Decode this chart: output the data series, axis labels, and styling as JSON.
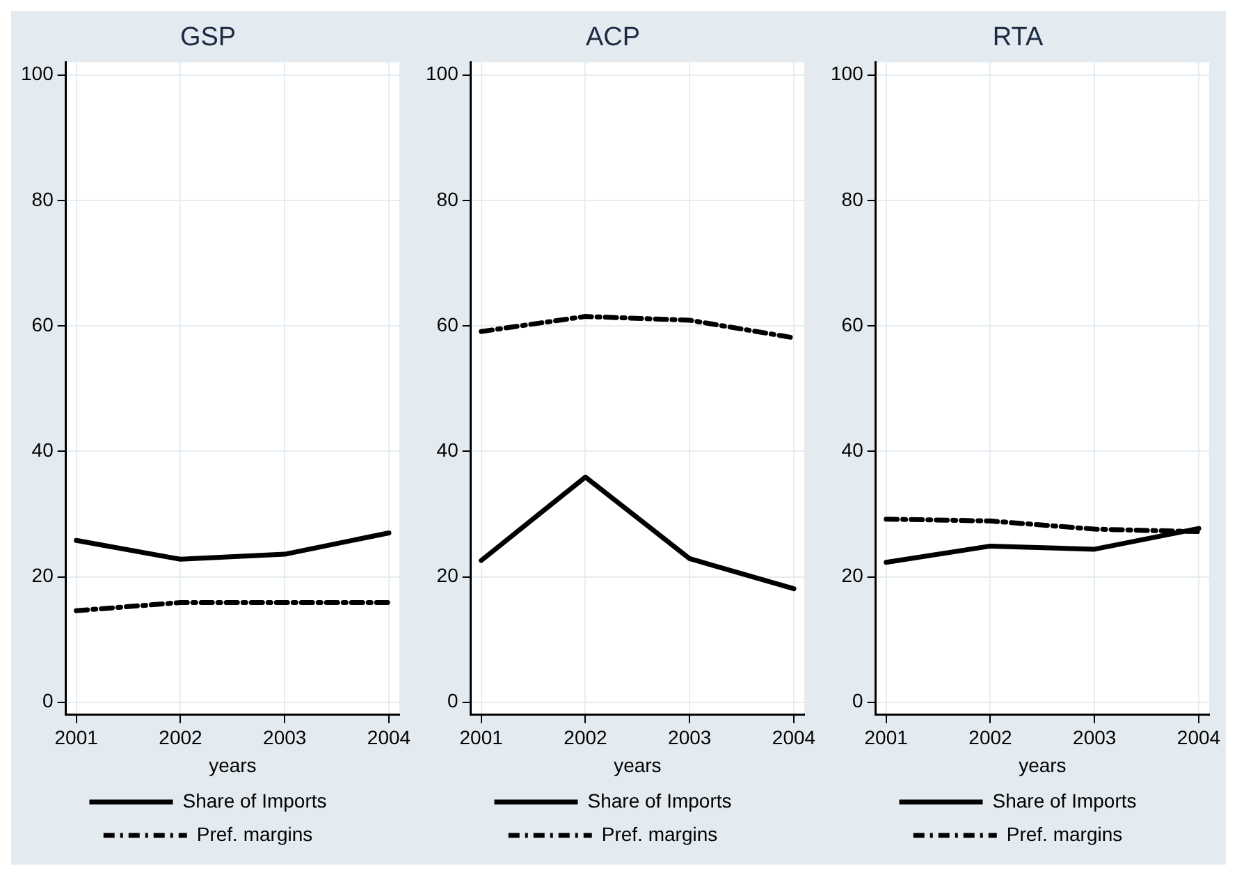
{
  "chart_data": [
    {
      "type": "line",
      "title": "GSP",
      "xlabel": "years",
      "x": [
        2001,
        2002,
        2003,
        2004
      ],
      "xlim": [
        2000.9,
        2004.1
      ],
      "xticks": [
        2001,
        2002,
        2003,
        2004
      ],
      "ylim": [
        -2,
        102
      ],
      "yticks": [
        0,
        20,
        40,
        60,
        80,
        100
      ],
      "grid": true,
      "legend": "bottom",
      "marker": "none",
      "series": [
        {
          "name": "Share of Imports",
          "color": "#000000",
          "line_style": "solid",
          "values": [
            25.8,
            22.8,
            23.6,
            27.0
          ]
        },
        {
          "name": "Pref. margins",
          "color": "#000000",
          "line_style": "dashed",
          "values": [
            14.6,
            15.9,
            15.9,
            15.9
          ]
        }
      ]
    },
    {
      "type": "line",
      "title": "ACP",
      "xlabel": "years",
      "x": [
        2001,
        2002,
        2003,
        2004
      ],
      "xlim": [
        2000.9,
        2004.1
      ],
      "xticks": [
        2001,
        2002,
        2003,
        2004
      ],
      "ylim": [
        -2,
        102
      ],
      "yticks": [
        0,
        20,
        40,
        60,
        80,
        100
      ],
      "grid": true,
      "legend": "bottom",
      "marker": "none",
      "series": [
        {
          "name": "Share of Imports",
          "color": "#000000",
          "line_style": "solid",
          "values": [
            22.6,
            35.9,
            22.9,
            18.1
          ]
        },
        {
          "name": "Pref. margins",
          "color": "#000000",
          "line_style": "dashed",
          "values": [
            59.1,
            61.5,
            60.9,
            58.1
          ]
        }
      ]
    },
    {
      "type": "line",
      "title": "RTA",
      "xlabel": "years",
      "x": [
        2001,
        2002,
        2003,
        2004
      ],
      "xlim": [
        2000.9,
        2004.1
      ],
      "xticks": [
        2001,
        2002,
        2003,
        2004
      ],
      "ylim": [
        -2,
        102
      ],
      "yticks": [
        0,
        20,
        40,
        60,
        80,
        100
      ],
      "grid": true,
      "legend": "bottom",
      "marker": "none",
      "series": [
        {
          "name": "Share of Imports",
          "color": "#000000",
          "line_style": "solid",
          "values": [
            22.3,
            24.9,
            24.4,
            27.7
          ]
        },
        {
          "name": "Pref. margins",
          "color": "#000000",
          "line_style": "dashed",
          "values": [
            29.2,
            28.9,
            27.6,
            27.2
          ]
        }
      ]
    }
  ]
}
